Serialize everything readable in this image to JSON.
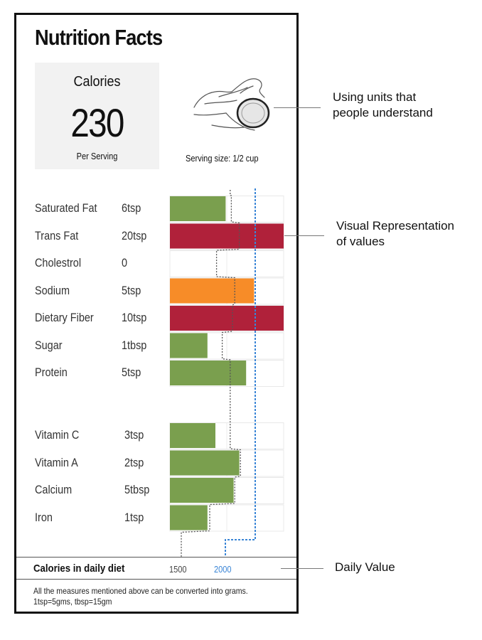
{
  "label": {
    "title": "Nutrition Facts",
    "calories_label": "Calories",
    "calories_value": "230",
    "per_serving": "Per Serving",
    "serving_size": "Serving size: 1/2 cup",
    "daily_diet_label": "Calories in daily diet",
    "daily_1500": "1500",
    "daily_2000": "2000",
    "note_line1": "All the measures mentioned above can be converted into grams.",
    "note_line2": "1tsp=5gms, tbsp=15gm"
  },
  "annotations": {
    "units": [
      "Using units that",
      "people understand"
    ],
    "visual": [
      "Visual Representation",
      "of values"
    ],
    "daily": "Daily Value"
  },
  "colors": {
    "green": "#7a9f4e",
    "red": "#b0213a",
    "orange": "#f78c28",
    "blue": "#3a85d6"
  },
  "chart_data": {
    "type": "bar",
    "groups": [
      {
        "rows": [
          {
            "name": "Saturated Fat",
            "amount": "6tsp",
            "value": 0.49,
            "color": "green",
            "dv1500": 0.54
          },
          {
            "name": "Trans Fat",
            "amount": "20tsp",
            "value": 1.0,
            "color": "red",
            "dv1500": 0.61
          },
          {
            "name": "Cholestrol",
            "amount": "0",
            "value": 0.0,
            "color": "green",
            "dv1500": 0.41
          },
          {
            "name": "Sodium",
            "amount": "5tsp",
            "value": 0.74,
            "color": "orange",
            "dv1500": 0.57
          },
          {
            "name": "Dietary Fiber",
            "amount": "10tsp",
            "value": 1.0,
            "color": "red",
            "dv1500": 0.55
          },
          {
            "name": "Sugar",
            "amount": "1tbsp",
            "value": 0.33,
            "color": "green",
            "dv1500": 0.46
          },
          {
            "name": "Protein",
            "amount": "5tsp",
            "value": 0.67,
            "color": "green",
            "dv1500": 0.53
          }
        ]
      },
      {
        "rows": [
          {
            "name": "Vitamin C",
            "amount": "3tsp",
            "value": 0.4,
            "color": "green",
            "dv1500": 0.53
          },
          {
            "name": "Vitamin A",
            "amount": "2tsp",
            "value": 0.61,
            "color": "green",
            "dv1500": 0.62
          },
          {
            "name": "Calcium",
            "amount": "5tbsp",
            "value": 0.56,
            "color": "green",
            "dv1500": 0.57
          },
          {
            "name": "Iron",
            "amount": "1tsp",
            "value": 0.33,
            "color": "green",
            "dv1500": 0.35
          }
        ]
      }
    ],
    "reference_lines": [
      {
        "name": "1500",
        "style": "dotted"
      },
      {
        "name": "2000",
        "style": "dashed",
        "color": "blue",
        "value": 0.75
      }
    ]
  }
}
